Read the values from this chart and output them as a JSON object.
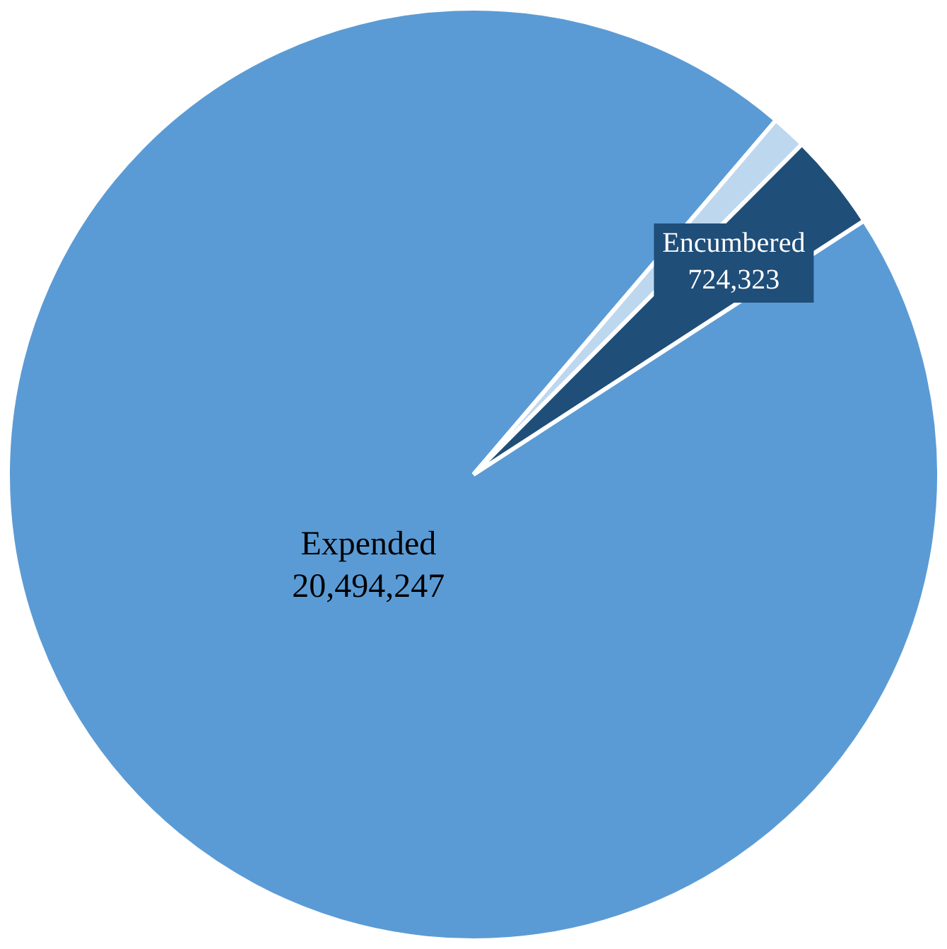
{
  "chart_data": {
    "type": "pie",
    "categories": [
      "Expended",
      null,
      "Encumbered"
    ],
    "values": [
      20494247,
      260000,
      724323
    ],
    "value_labels": [
      "20,494,247",
      null,
      "724,323"
    ],
    "colors": [
      "#5b9bd5",
      "#bdd7ee",
      "#1f4e79"
    ],
    "legend": false
  }
}
